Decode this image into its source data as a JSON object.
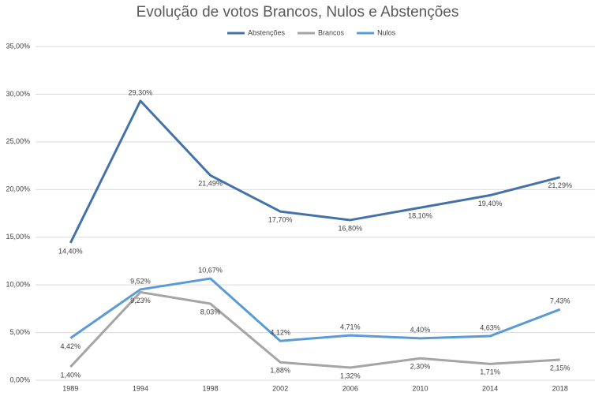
{
  "chart_data": {
    "type": "line",
    "title": "Evolução de votos Brancos, Nulos e Abstenções",
    "categories": [
      "1989",
      "1994",
      "1998",
      "2002",
      "2006",
      "2010",
      "2014",
      "2018"
    ],
    "series": [
      {
        "name": "Abstenções",
        "color": "#4472a8",
        "values": [
          14.4,
          29.3,
          21.49,
          17.7,
          16.8,
          18.1,
          19.4,
          21.29
        ],
        "value_labels": [
          "14,40%",
          "29,30%",
          "21,49%",
          "17,70%",
          "16,80%",
          "18,10%",
          "19,40%",
          "21,29%"
        ]
      },
      {
        "name": "Brancos",
        "color": "#a5a5a5",
        "values": [
          1.4,
          9.23,
          8.03,
          1.88,
          1.32,
          2.3,
          1.71,
          2.15
        ],
        "value_labels": [
          "1,40%",
          "9,23%",
          "8,03%",
          "1,88%",
          "1,32%",
          "2,30%",
          "1,71%",
          "2,15%"
        ]
      },
      {
        "name": "Nulos",
        "color": "#5b9bd5",
        "values": [
          4.42,
          9.52,
          10.67,
          4.12,
          4.71,
          4.4,
          4.63,
          7.43
        ],
        "value_labels": [
          "4,42%",
          "9,52%",
          "10,67%",
          "4,12%",
          "4,71%",
          "4,40%",
          "4,63%",
          "7,43%"
        ]
      }
    ],
    "ylim": [
      0,
      35
    ],
    "yticks": [
      {
        "value": 0,
        "label": "0,00%"
      },
      {
        "value": 5,
        "label": "5,00%"
      },
      {
        "value": 10,
        "label": "10,00%"
      },
      {
        "value": 15,
        "label": "15,00%"
      },
      {
        "value": 20,
        "label": "20,00%"
      },
      {
        "value": 25,
        "label": "25,00%"
      },
      {
        "value": 30,
        "label": "30,00%"
      },
      {
        "value": 35,
        "label": "35,00%"
      }
    ],
    "grid": true,
    "legend": "top"
  }
}
